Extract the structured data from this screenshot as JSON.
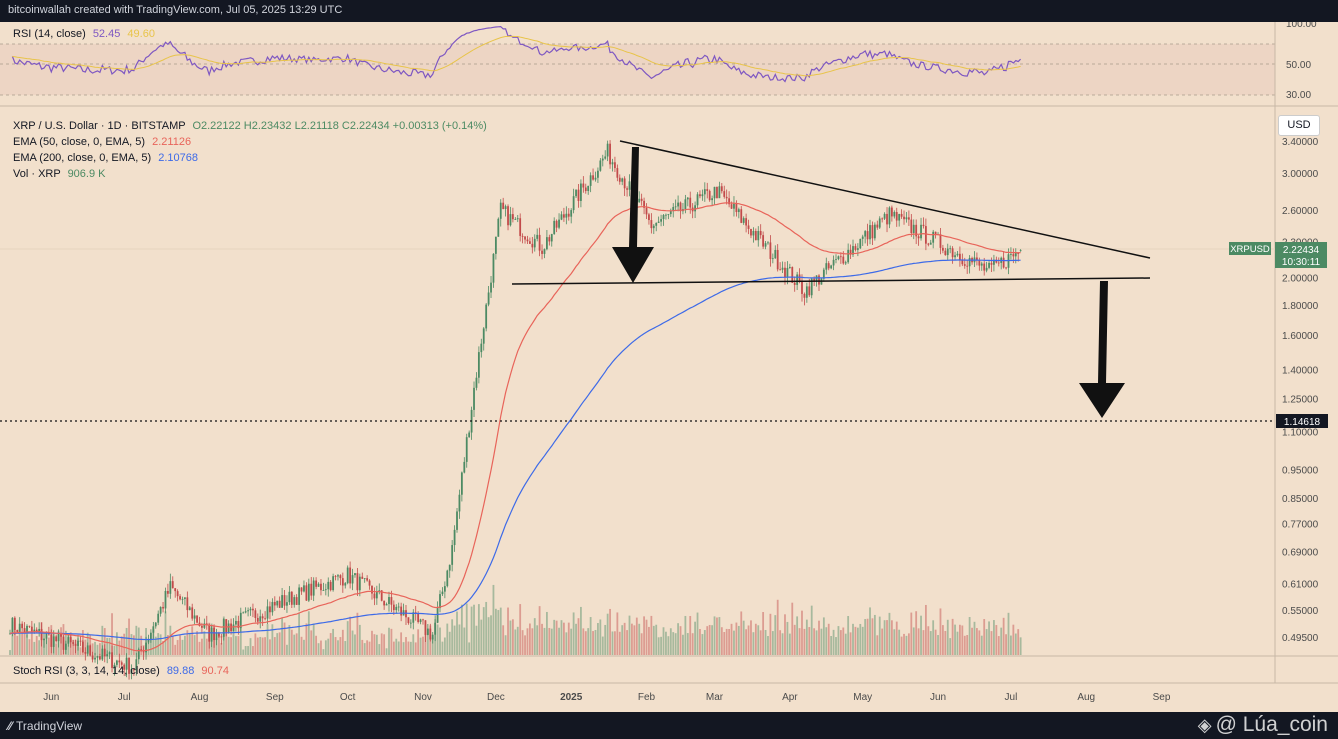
{
  "header": {
    "credit": "bitcoinwallah created with TradingView.com, Jul 05, 2025 13:29 UTC"
  },
  "footer": {
    "brand": "TradingView",
    "watermark": "@ Lúa_coin"
  },
  "colors": {
    "background": "#f2e0cc",
    "up": "#4c8a63",
    "down": "#c24a4a",
    "rsi": "#7e57c2",
    "rsi_ma": "#e8c44a",
    "ema50": "#e8645a",
    "ema200": "#3d6ae8",
    "accent": "#4c8a63"
  },
  "icons": {
    "tv_logo": "tradingview-logo-icon",
    "watermark_logo": "binance-diamond-icon"
  },
  "rsi_panel": {
    "label": "RSI (14, close)",
    "value": "52.45",
    "ma_value": "49.60",
    "scale": [
      "100.00",
      "50.00",
      "30.00"
    ]
  },
  "main_legend": {
    "symbol": "XRP / U.S. Dollar · 1D · BITSTAMP",
    "ohlc": "O2.22122  H2.23432  L2.21118  C2.22434  +0.00313 (+0.14%)",
    "ema50_label": "EMA (50, close, 0, EMA, 5)",
    "ema50_value": "2.21126",
    "ema200_label": "EMA (200, close, 0, EMA, 5)",
    "ema200_value": "2.10768",
    "vol_label": "Vol · XRP",
    "vol_value": "906.9 K"
  },
  "currency_button": "USD",
  "price_scale": [
    "3.40000",
    "3.00000",
    "2.60000",
    "2.30000",
    "2.00000",
    "1.80000",
    "1.60000",
    "1.40000",
    "1.25000",
    "1.10000",
    "0.95000",
    "0.85000",
    "0.77000",
    "0.69000",
    "0.61000",
    "0.55000",
    "0.49500"
  ],
  "price_tag": {
    "symbol": "XRPUSD",
    "price": "2.22434",
    "countdown": "10:30:11"
  },
  "target_tag": "1.14618",
  "stoch_panel": {
    "label": "Stoch RSI (3, 3, 14, 14, close)",
    "k_value": "89.88",
    "d_value": "90.74"
  },
  "time_axis": [
    "Jun",
    "Jul",
    "Aug",
    "Sep",
    "Oct",
    "Nov",
    "Dec",
    "2025",
    "Feb",
    "Mar",
    "Apr",
    "May",
    "Jun",
    "Jul",
    "Aug",
    "Sep"
  ],
  "chart_data": {
    "type": "candlestick",
    "symbol": "XRP / U.S. Dollar",
    "interval": "1D",
    "exchange": "BITSTAMP",
    "scale": "log",
    "ylim": [
      0.45,
      3.6
    ],
    "x_range": [
      "2024-05-15",
      "2025-09-30"
    ],
    "last_bar": {
      "open": 2.22122,
      "high": 2.23432,
      "low": 2.21118,
      "close": 2.22434,
      "change": 0.00313,
      "change_pct": 0.14
    },
    "key_price_path": [
      {
        "date": "2024-05-15",
        "price": 0.52
      },
      {
        "date": "2024-07-05",
        "price": 0.44
      },
      {
        "date": "2024-07-20",
        "price": 0.6
      },
      {
        "date": "2024-08-05",
        "price": 0.5
      },
      {
        "date": "2024-09-05",
        "price": 0.57
      },
      {
        "date": "2024-10-01",
        "price": 0.63
      },
      {
        "date": "2024-11-05",
        "price": 0.5
      },
      {
        "date": "2024-11-13",
        "price": 0.7
      },
      {
        "date": "2024-11-22",
        "price": 1.3
      },
      {
        "date": "2024-12-03",
        "price": 2.6
      },
      {
        "date": "2024-12-20",
        "price": 2.25
      },
      {
        "date": "2025-01-16",
        "price": 3.25
      },
      {
        "date": "2025-02-03",
        "price": 2.45
      },
      {
        "date": "2025-03-02",
        "price": 2.8
      },
      {
        "date": "2025-04-07",
        "price": 1.9
      },
      {
        "date": "2025-05-12",
        "price": 2.55
      },
      {
        "date": "2025-06-22",
        "price": 2.05
      },
      {
        "date": "2025-07-05",
        "price": 2.22434
      }
    ],
    "ema50_last": 2.21126,
    "ema200_last": 2.10768,
    "volume_last": "906.9 K",
    "annotations": {
      "triangle_upper_trendline": [
        {
          "date": "2025-01-16",
          "price": 3.4
        },
        {
          "date": "2025-07-31",
          "price": 2.18
        }
      ],
      "triangle_support_line": [
        {
          "date": "2024-12-02",
          "price": 1.95
        },
        {
          "date": "2025-07-31",
          "price": 1.97
        }
      ],
      "breakdown_target": 1.14618,
      "arrows": [
        "down arrow at Jan 2025 peak toward support",
        "down arrow from support breakdown toward 1.14618 target"
      ]
    }
  }
}
